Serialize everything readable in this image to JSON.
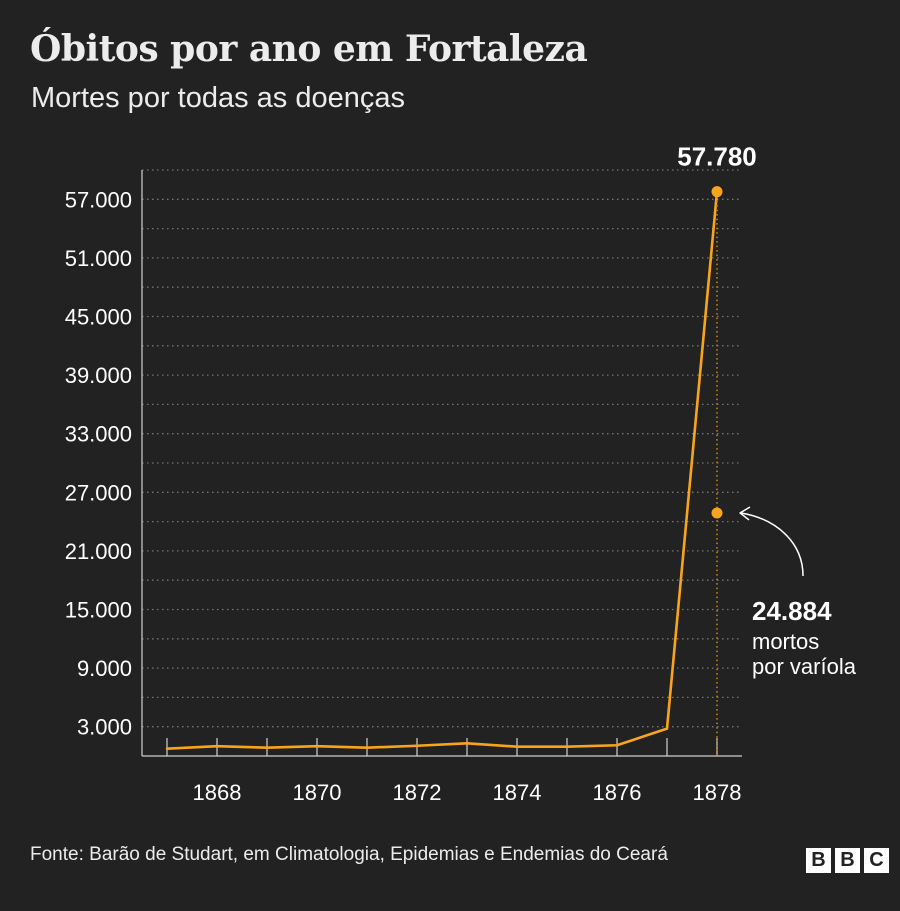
{
  "title": "Óbitos por ano em Fortaleza",
  "subtitle": "Mortes por todas as doenças",
  "source": "Fonte: Barão de Studart, em Climatologia, Epidemias e Endemias do Ceará",
  "logo": [
    "B",
    "B",
    "C"
  ],
  "colors": {
    "background": "#222222",
    "line": "#f8a51c",
    "text": "#ffffff",
    "grid": "#8a8a8a"
  },
  "chart_data": {
    "type": "line",
    "title": "Óbitos por ano em Fortaleza",
    "subtitle": "Mortes por todas as doenças",
    "xlabel": "",
    "ylabel": "",
    "x": [
      1867,
      1868,
      1869,
      1870,
      1871,
      1872,
      1873,
      1874,
      1875,
      1876,
      1877,
      1878
    ],
    "series": [
      {
        "values": [
          750,
          1000,
          850,
          1000,
          850,
          1050,
          1300,
          950,
          950,
          1100,
          2800,
          57780
        ]
      }
    ],
    "x_ticks": [
      1868,
      1870,
      1872,
      1874,
      1876,
      1878
    ],
    "y_ticks": [
      3000,
      9000,
      15000,
      21000,
      27000,
      33000,
      39000,
      45000,
      51000,
      57000
    ],
    "y_tick_labels": [
      "3.000",
      "9.000",
      "15.000",
      "21.000",
      "27.000",
      "33.000",
      "39.000",
      "45.000",
      "51.000",
      "57.000"
    ],
    "ylim": [
      0,
      60000
    ],
    "xlim": [
      1866.5,
      1878.5
    ],
    "grid": "horizontal dotted",
    "peak": {
      "x": 1878,
      "value": 57780,
      "label": "57.780"
    },
    "smallpox": {
      "x": 1878,
      "value": 24884,
      "label": "24.884",
      "caption_line1": "mortos",
      "caption_line2": "por varíola"
    }
  }
}
